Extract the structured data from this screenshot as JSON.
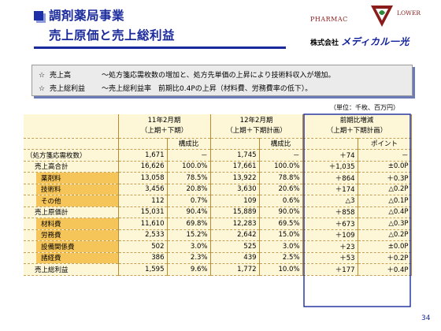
{
  "header": {
    "title_line1": "調剤薬局事業",
    "title_line2": "売上原価と売上総利益",
    "logo_brand_left": "PHARMAC",
    "logo_brand_right": "LOWER",
    "company_prefix": "株式会社",
    "company_name": "メディカル一光",
    "colors": {
      "title": "#1a2a9c",
      "logo_red": "#8a1c1c",
      "logo_green": "#2e8a3a"
    }
  },
  "summary": {
    "line1": {
      "star": "☆",
      "label": "売上高",
      "text": "～処方箋応需枚数の増加と、処方先単価の上昇により技術料収入が増加。"
    },
    "line2": {
      "star": "☆",
      "label": "売上総利益",
      "text": "～売上総利益率　前期比0.4Pの上昇（材料費、労務費率の低下）。"
    }
  },
  "unit_note": "（単位：千枚、百万円）",
  "table": {
    "col_groups": [
      {
        "line1": "11年2月期",
        "line2": "（上期＋下期）"
      },
      {
        "line1": "12年2月期",
        "line2": "（上期＋下期計画）"
      },
      {
        "line1": "前期比増減",
        "line2": "（上期＋下期計画）"
      }
    ],
    "sub_headers": {
      "ratio1": "構成比",
      "ratio2": "構成比",
      "point": "ポイント"
    },
    "rows": [
      {
        "label": "（処方箋応需枚数）",
        "kind": "top",
        "v11": "1,671",
        "r11": "－",
        "v12": "1,745",
        "r12": "－",
        "diff": "＋74",
        "pt": "－"
      },
      {
        "label": "売上高合計",
        "kind": "grp",
        "v11": "16,626",
        "r11": "100.0%",
        "v12": "17,661",
        "r12": "100.0%",
        "diff": "＋1,035",
        "pt": "±0.0P"
      },
      {
        "label": "薬剤料",
        "kind": "sub",
        "v11": "13,058",
        "r11": "78.5%",
        "v12": "13,922",
        "r12": "78.8%",
        "diff": "＋864",
        "pt": "＋0.3P"
      },
      {
        "label": "技術料",
        "kind": "sub",
        "v11": "3,456",
        "r11": "20.8%",
        "v12": "3,630",
        "r12": "20.6%",
        "diff": "＋174",
        "pt": "△0.2P"
      },
      {
        "label": "その他",
        "kind": "sub",
        "v11": "112",
        "r11": "0.7%",
        "v12": "109",
        "r12": "0.6%",
        "diff": "△3",
        "pt": "△0.1P"
      },
      {
        "label": "売上原価計",
        "kind": "grp",
        "v11": "15,031",
        "r11": "90.4%",
        "v12": "15,889",
        "r12": "90.0%",
        "diff": "＋858",
        "pt": "△0.4P"
      },
      {
        "label": "材料費",
        "kind": "sub",
        "v11": "11,610",
        "r11": "69.8%",
        "v12": "12,283",
        "r12": "69.5%",
        "diff": "＋673",
        "pt": "△0.3P"
      },
      {
        "label": "労務費",
        "kind": "sub",
        "v11": "2,533",
        "r11": "15.2%",
        "v12": "2,642",
        "r12": "15.0%",
        "diff": "＋109",
        "pt": "△0.2P"
      },
      {
        "label": "設備関係費",
        "kind": "sub",
        "v11": "502",
        "r11": "3.0%",
        "v12": "525",
        "r12": "3.0%",
        "diff": "＋23",
        "pt": "±0.0P"
      },
      {
        "label": "諸経費",
        "kind": "sub",
        "v11": "386",
        "r11": "2.3%",
        "v12": "439",
        "r12": "2.5%",
        "diff": "＋53",
        "pt": "＋0.2P"
      },
      {
        "label": "売上総利益",
        "kind": "grp",
        "v11": "1,595",
        "r11": "9.6%",
        "v12": "1,772",
        "r12": "10.0%",
        "diff": "＋177",
        "pt": "＋0.4P"
      }
    ],
    "colors": {
      "body_bg": "#fdf7d8",
      "highlight": "#f5c55a",
      "border": "#b88a32",
      "outline": "#1a2a9c"
    }
  },
  "page_number": "34"
}
